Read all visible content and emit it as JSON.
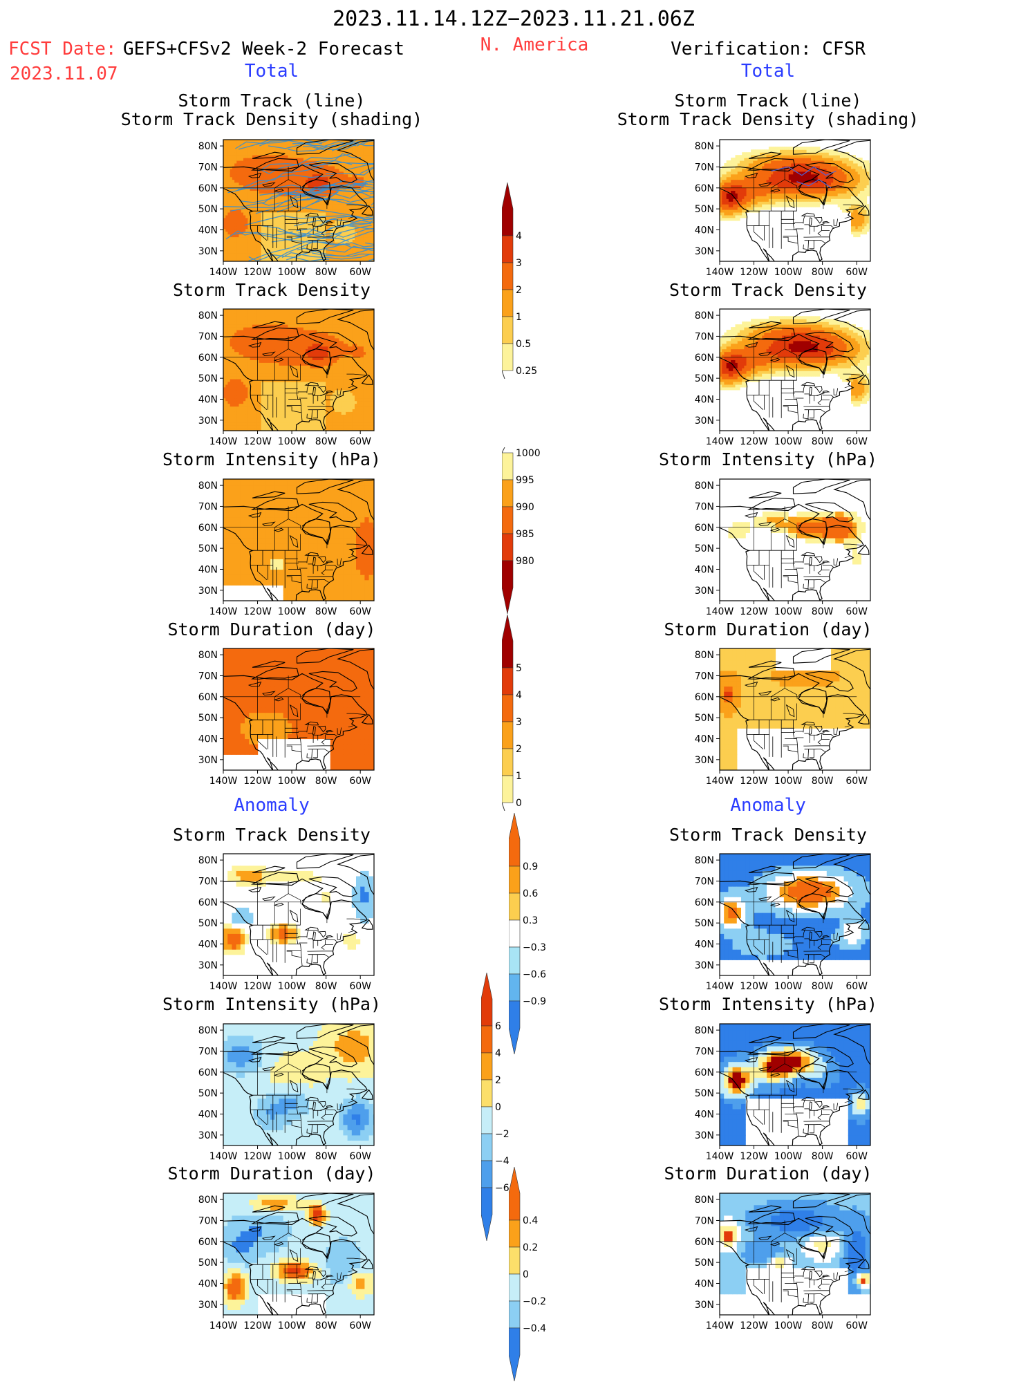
{
  "header": {
    "period": "2023.11.14.12Z−2023.11.21.06Z",
    "region": "N. America",
    "fcst_label": "FCST Date:",
    "fcst_model": "GEFS+CFSv2 Week-2 Forecast",
    "fcst_date": "2023.11.07",
    "verification": "Verification: CFSR",
    "total_left": "Total",
    "total_right": "Total",
    "anomaly_left": "Anomaly",
    "anomaly_right": "Anomaly"
  },
  "panel_titles": {
    "track_line": "Storm Track (line)",
    "track_density_shading": "Storm Track Density (shading)",
    "track_density": "Storm Track Density",
    "intensity": "Storm Intensity (hPa)",
    "duration": "Storm Duration (day)"
  },
  "axes": {
    "lat_labels": [
      "80N",
      "70N",
      "60N",
      "50N",
      "40N",
      "30N"
    ],
    "lon_labels": [
      "140W",
      "120W",
      "100W",
      "80W",
      "60W"
    ],
    "lat_values": [
      80,
      70,
      60,
      50,
      40,
      30
    ],
    "lon_values": [
      -140,
      -120,
      -100,
      -80,
      -60
    ],
    "lat_range": [
      25,
      83
    ],
    "lon_range": [
      -140,
      -52
    ]
  },
  "colorbars": [
    {
      "name": "density-colorbar",
      "labels": [
        "4",
        "3",
        "2",
        "1",
        "0.5",
        "0.25"
      ],
      "colors": [
        "#a00000",
        "#e23b0a",
        "#f46a0e",
        "#fba11a",
        "#fcce4f",
        "#fdf39a"
      ],
      "top_arrow": true,
      "bottom_arrow": false
    },
    {
      "name": "intensity-colorbar",
      "labels": [
        "1000",
        "995",
        "990",
        "985",
        "980"
      ],
      "colors": [
        "#fdf39a",
        "#fba11a",
        "#f46a0e",
        "#e23b0a",
        "#a00000"
      ],
      "top_arrow": false,
      "bottom_arrow": true
    },
    {
      "name": "duration-colorbar",
      "labels": [
        "5",
        "4",
        "3",
        "2",
        "1",
        "0"
      ],
      "colors": [
        "#a00000",
        "#e23b0a",
        "#f46a0e",
        "#fba11a",
        "#fcce4f",
        "#fdf39a"
      ],
      "top_arrow": true,
      "bottom_arrow": false
    },
    {
      "name": "density-anomaly-colorbar",
      "labels": [
        "0.9",
        "0.6",
        "0.3",
        "−0.3",
        "−0.6",
        "−0.9"
      ],
      "colors": [
        "#f46a0e",
        "#fba11a",
        "#fcce4f",
        "#ffffff",
        "#a8e4f5",
        "#62b5ef",
        "#2f7fe8"
      ],
      "top_arrow": true,
      "bottom_arrow": true
    },
    {
      "name": "intensity-anomaly-colorbar",
      "labels": [
        "6",
        "4",
        "2",
        "0",
        "−2",
        "−4",
        "−6"
      ],
      "colors": [
        "#e23b0a",
        "#f46a0e",
        "#fba11a",
        "#fcdf6a",
        "#c6eef8",
        "#8ccff3",
        "#4e9fec",
        "#2f7fe8"
      ],
      "top_arrow": true,
      "bottom_arrow": true
    },
    {
      "name": "duration-anomaly-colorbar",
      "labels": [
        "0.4",
        "0.2",
        "0",
        "−0.2",
        "−0.4"
      ],
      "colors": [
        "#f46a0e",
        "#fba11a",
        "#fcdf6a",
        "#c6eef8",
        "#8ccff3",
        "#2f7fe8"
      ],
      "top_arrow": true,
      "bottom_arrow": true
    }
  ],
  "colors": {
    "darkred": "#a00000",
    "red": "#e23b0a",
    "orange": "#f46a0e",
    "lightorange": "#fba11a",
    "yellow": "#fcce4f",
    "paleyellow": "#fdf39a",
    "lightblue": "#c6eef8",
    "midblue": "#8ccff3",
    "blue": "#4e9fec",
    "darkblue": "#2f7fe8",
    "trackline": "#3a8fd0"
  }
}
